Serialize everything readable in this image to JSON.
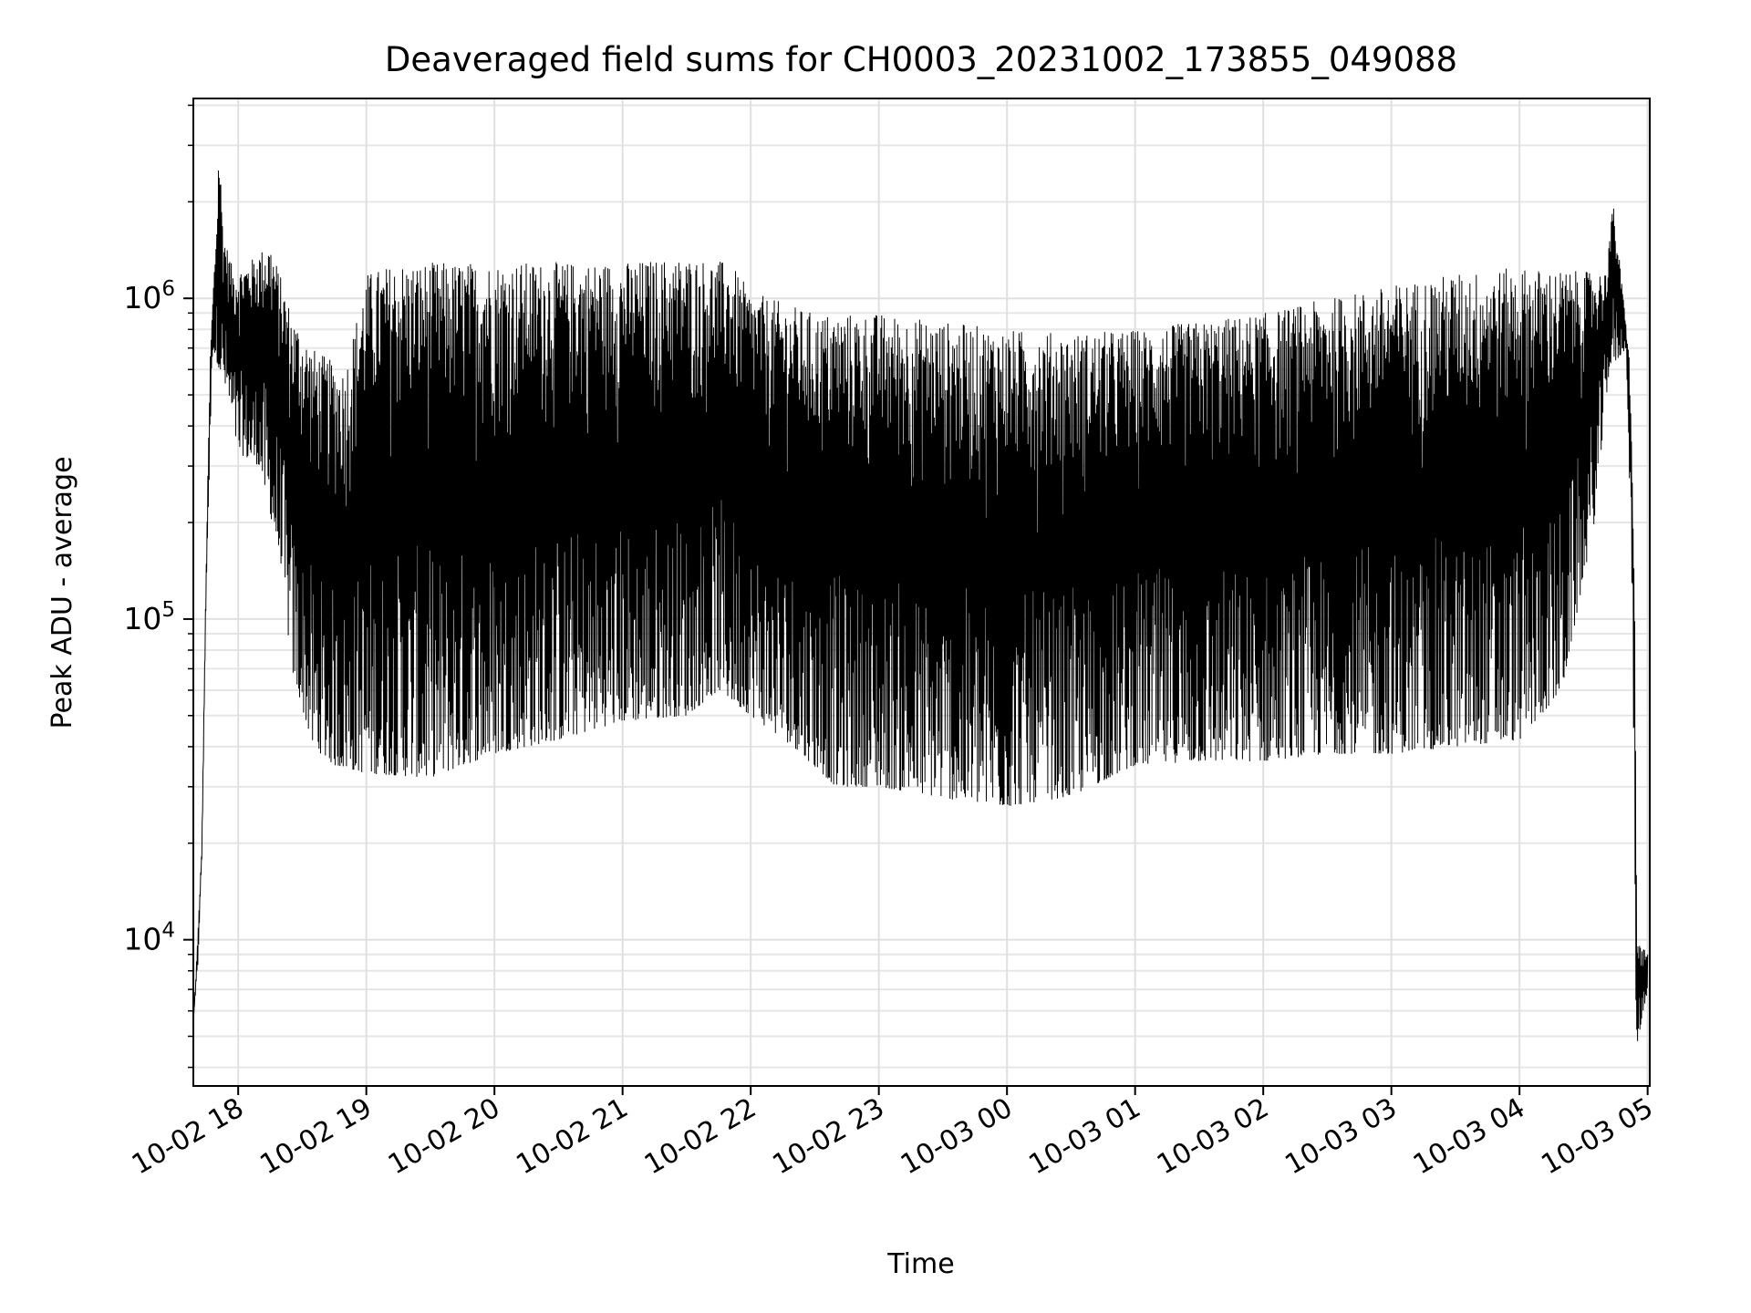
{
  "chart_data": {
    "type": "line",
    "title": "Deaveraged field sums for CH0003_20231002_173855_049088",
    "xlabel": "Time",
    "ylabel": "Peak ADU - average",
    "x_range": [
      "2023-10-02T17:39:00",
      "2023-10-03T05:01:00"
    ],
    "y_scale": "log",
    "ylim": [
      3500,
      4200000
    ],
    "grid": {
      "major": true,
      "minor_y": true
    },
    "line_color": "#000000",
    "x_ticks": [
      "10-02 18",
      "10-02 19",
      "10-02 20",
      "10-02 21",
      "10-02 22",
      "10-02 23",
      "10-03 00",
      "10-03 01",
      "10-03 02",
      "10-03 03",
      "10-03 04",
      "10-03 05"
    ],
    "x_tick_times": [
      "2023-10-02T18:00:00",
      "2023-10-02T19:00:00",
      "2023-10-02T20:00:00",
      "2023-10-02T21:00:00",
      "2023-10-02T22:00:00",
      "2023-10-02T23:00:00",
      "2023-10-03T00:00:00",
      "2023-10-03T01:00:00",
      "2023-10-03T02:00:00",
      "2023-10-03T03:00:00",
      "2023-10-03T04:00:00",
      "2023-10-03T05:00:00"
    ],
    "y_ticks": [
      {
        "base": "10",
        "exp": "4",
        "value": 10000
      },
      {
        "base": "10",
        "exp": "5",
        "value": 100000
      },
      {
        "base": "10",
        "exp": "6",
        "value": 1000000
      }
    ],
    "series": [
      {
        "envelope_upper": [
          [
            "2023-10-02T17:39:00",
            5500
          ],
          [
            "2023-10-02T17:41:00",
            10000
          ],
          [
            "2023-10-02T17:43:00",
            20000
          ],
          [
            "2023-10-02T17:45:00",
            150000
          ],
          [
            "2023-10-02T17:47:00",
            700000
          ],
          [
            "2023-10-02T17:50:00",
            1800000
          ],
          [
            "2023-10-02T17:51:00",
            3200000
          ],
          [
            "2023-10-02T17:53:00",
            1600000
          ],
          [
            "2023-10-02T17:58:00",
            1200000
          ],
          [
            "2023-10-02T18:05:00",
            1300000
          ],
          [
            "2023-10-02T18:15:00",
            1500000
          ],
          [
            "2023-10-02T18:25:00",
            900000
          ],
          [
            "2023-10-02T18:35:00",
            700000
          ],
          [
            "2023-10-02T18:50:00",
            600000
          ],
          [
            "2023-10-02T19:00:00",
            1200000
          ],
          [
            "2023-10-02T19:15:00",
            1300000
          ],
          [
            "2023-10-02T19:40:00",
            1300000
          ],
          [
            "2023-10-02T20:00:00",
            1300000
          ],
          [
            "2023-10-02T20:30:00",
            1300000
          ],
          [
            "2023-10-02T21:00:00",
            1300000
          ],
          [
            "2023-10-02T21:30:00",
            1350000
          ],
          [
            "2023-10-02T21:50:00",
            1300000
          ],
          [
            "2023-10-02T22:00:00",
            1050000
          ],
          [
            "2023-10-02T22:30:00",
            900000
          ],
          [
            "2023-10-02T23:00:00",
            900000
          ],
          [
            "2023-10-02T23:30:00",
            850000
          ],
          [
            "2023-10-03T00:00:00",
            800000
          ],
          [
            "2023-10-03T00:30:00",
            780000
          ],
          [
            "2023-10-03T01:00:00",
            800000
          ],
          [
            "2023-10-03T01:30:00",
            850000
          ],
          [
            "2023-10-03T02:00:00",
            900000
          ],
          [
            "2023-10-03T02:30:00",
            1000000
          ],
          [
            "2023-10-03T03:00:00",
            1100000
          ],
          [
            "2023-10-03T03:30:00",
            1200000
          ],
          [
            "2023-10-03T04:00:00",
            1250000
          ],
          [
            "2023-10-03T04:40:00",
            1200000
          ],
          [
            "2023-10-03T04:44:00",
            2000000
          ],
          [
            "2023-10-03T04:48:00",
            1100000
          ],
          [
            "2023-10-03T04:52:00",
            600000
          ],
          [
            "2023-10-03T04:54:00",
            100000
          ],
          [
            "2023-10-03T04:55:00",
            10000
          ],
          [
            "2023-10-03T05:00:00",
            9000
          ]
        ],
        "envelope_lower": [
          [
            "2023-10-02T17:39:00",
            5500
          ],
          [
            "2023-10-02T17:41:00",
            8000
          ],
          [
            "2023-10-02T17:43:00",
            18000
          ],
          [
            "2023-10-02T17:45:00",
            120000
          ],
          [
            "2023-10-02T17:48:00",
            700000
          ],
          [
            "2023-10-02T17:55:00",
            500000
          ],
          [
            "2023-10-02T18:00:00",
            330000
          ],
          [
            "2023-10-02T18:10:00",
            300000
          ],
          [
            "2023-10-02T18:20:00",
            150000
          ],
          [
            "2023-10-02T18:25:00",
            70000
          ],
          [
            "2023-10-02T18:35:00",
            40000
          ],
          [
            "2023-10-02T18:45:00",
            35000
          ],
          [
            "2023-10-02T19:00:00",
            33000
          ],
          [
            "2023-10-02T19:30:00",
            32000
          ],
          [
            "2023-10-02T20:00:00",
            38000
          ],
          [
            "2023-10-02T20:30:00",
            42000
          ],
          [
            "2023-10-02T21:00:00",
            48000
          ],
          [
            "2023-10-02T21:30:00",
            50000
          ],
          [
            "2023-10-02T21:45:00",
            60000
          ],
          [
            "2023-10-02T22:00:00",
            50000
          ],
          [
            "2023-10-02T22:20:00",
            40000
          ],
          [
            "2023-10-02T22:40:00",
            30000
          ],
          [
            "2023-10-02T23:00:00",
            30000
          ],
          [
            "2023-10-02T23:40:00",
            27000
          ],
          [
            "2023-10-03T00:00:00",
            26000
          ],
          [
            "2023-10-03T00:30:00",
            28000
          ],
          [
            "2023-10-03T01:00:00",
            35000
          ],
          [
            "2023-10-03T01:30:00",
            36000
          ],
          [
            "2023-10-03T02:00:00",
            36000
          ],
          [
            "2023-10-03T02:30:00",
            38000
          ],
          [
            "2023-10-03T03:00:00",
            38000
          ],
          [
            "2023-10-03T03:30:00",
            40000
          ],
          [
            "2023-10-03T04:00:00",
            42000
          ],
          [
            "2023-10-03T04:20:00",
            60000
          ],
          [
            "2023-10-03T04:35:00",
            200000
          ],
          [
            "2023-10-03T04:42:00",
            600000
          ],
          [
            "2023-10-03T04:50:00",
            700000
          ],
          [
            "2023-10-03T04:53:00",
            100000
          ],
          [
            "2023-10-03T04:54:30",
            4500
          ],
          [
            "2023-10-03T05:00:00",
            7000
          ]
        ]
      }
    ]
  }
}
